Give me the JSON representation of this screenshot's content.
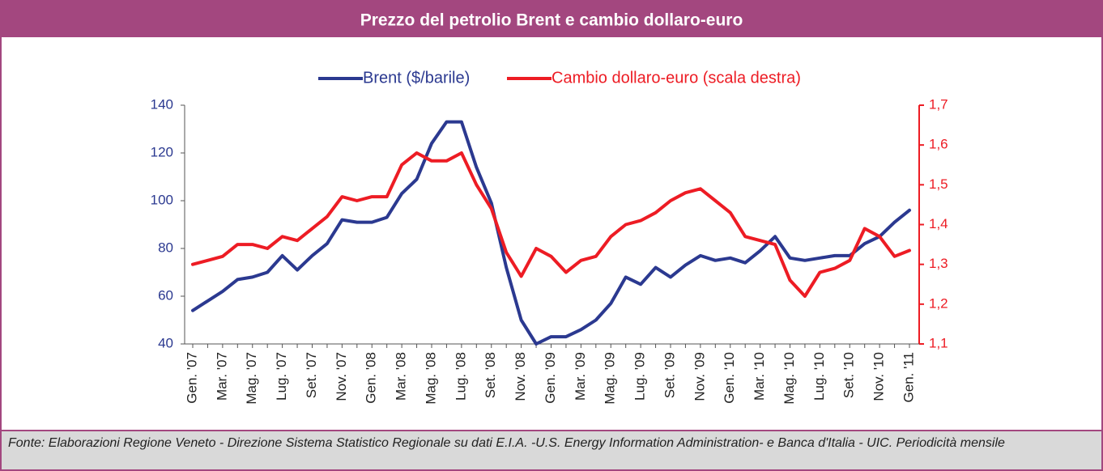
{
  "chart_data": {
    "type": "line",
    "title": "Prezzo del petrolio Brent e cambio dollaro-euro",
    "source": "Fonte: Elaborazioni Regione Veneto - Direzione Sistema Statistico Regionale su dati E.I.A. -U.S. Energy Information Administration- e Banca d'Italia - UIC. Periodicità mensile",
    "categories": [
      "Gen. '07",
      null,
      "Mar. '07",
      null,
      "Mag. '07",
      null,
      "Lug. '07",
      null,
      "Set. '07",
      null,
      "Nov. '07",
      null,
      "Gen. '08",
      null,
      "Mar. '08",
      null,
      "Mag. '08",
      null,
      "Lug. '08",
      null,
      "Set. '08",
      null,
      "Nov. '08",
      null,
      "Gen. '09",
      null,
      "Mar. '09",
      null,
      "Mag. '09",
      null,
      "Lug. '09",
      null,
      "Set. '09",
      null,
      "Nov. '09",
      null,
      "Gen. '10",
      null,
      "Mar. '10",
      null,
      "Mag. '10",
      null,
      "Lug. '10",
      null,
      "Set. '10",
      null,
      "Nov. '10",
      null,
      "Gen. '11"
    ],
    "series": [
      {
        "name": "Brent ($/barile)",
        "color": "#2b3990",
        "axis": "y",
        "values": [
          54,
          58,
          62,
          67,
          68,
          70,
          77,
          71,
          77,
          82,
          92,
          91,
          91,
          93,
          103,
          109,
          124,
          133,
          133,
          114,
          99,
          72,
          50,
          40,
          43,
          43,
          46,
          50,
          57,
          68,
          65,
          72,
          68,
          73,
          77,
          75,
          76,
          74,
          79,
          85,
          76,
          75,
          76,
          77,
          77,
          82,
          85,
          91,
          96
        ]
      },
      {
        "name": "Cambio dollaro-euro (scala destra)",
        "color": "#ed1c24",
        "axis": "y2",
        "values": [
          1.3,
          1.31,
          1.32,
          1.35,
          1.35,
          1.34,
          1.37,
          1.36,
          1.39,
          1.42,
          1.47,
          1.46,
          1.47,
          1.47,
          1.55,
          1.58,
          1.56,
          1.56,
          1.58,
          1.5,
          1.44,
          1.33,
          1.27,
          1.34,
          1.32,
          1.28,
          1.31,
          1.32,
          1.37,
          1.4,
          1.41,
          1.43,
          1.46,
          1.48,
          1.49,
          1.46,
          1.43,
          1.37,
          1.36,
          1.35,
          1.26,
          1.22,
          1.28,
          1.29,
          1.31,
          1.39,
          1.37,
          1.32,
          1.335
        ]
      }
    ],
    "ylim": [
      40,
      140
    ],
    "yticks": [
      40,
      60,
      80,
      100,
      120,
      140
    ],
    "y2lim": [
      1.1,
      1.7
    ],
    "y2ticks": [
      {
        "value": 1.1,
        "label": "1,1"
      },
      {
        "value": 1.2,
        "label": "1,2"
      },
      {
        "value": 1.3,
        "label": "1,3"
      },
      {
        "value": 1.4,
        "label": "1,4"
      },
      {
        "value": 1.5,
        "label": "1,5"
      },
      {
        "value": 1.6,
        "label": "1,6"
      },
      {
        "value": 1.7,
        "label": "1,7"
      }
    ],
    "legend": "top"
  }
}
